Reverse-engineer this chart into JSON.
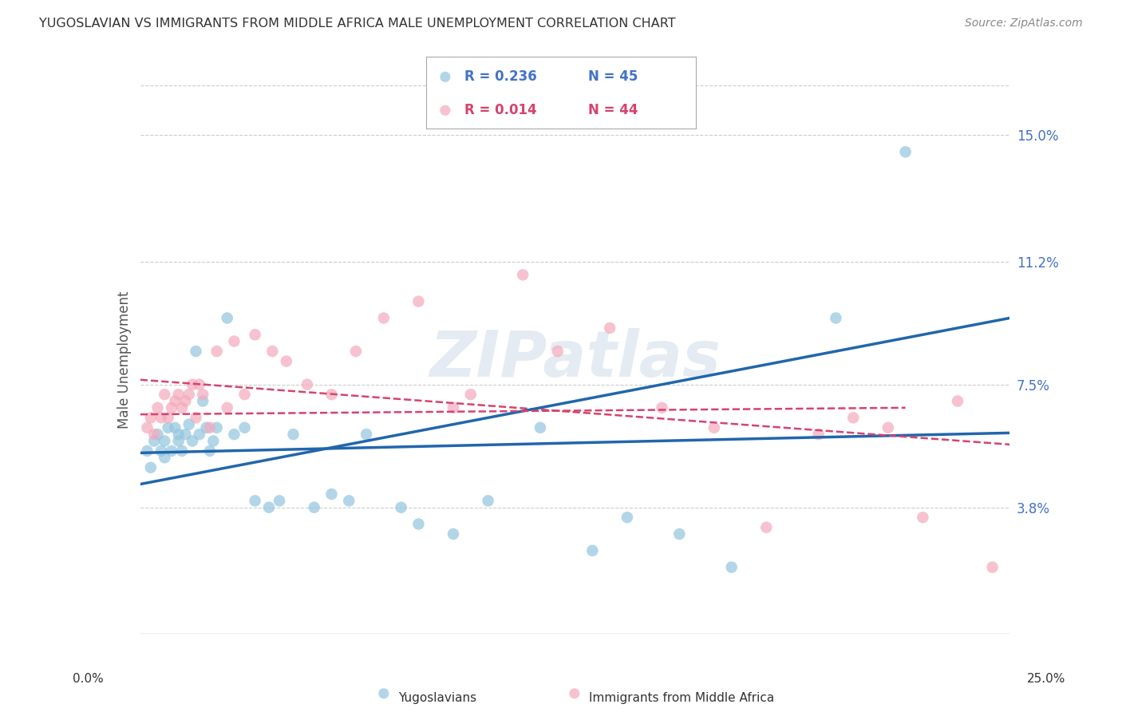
{
  "title": "YUGOSLAVIAN VS IMMIGRANTS FROM MIDDLE AFRICA MALE UNEMPLOYMENT CORRELATION CHART",
  "source": "Source: ZipAtlas.com",
  "ylabel": "Male Unemployment",
  "ytick_labels": [
    "15.0%",
    "11.2%",
    "7.5%",
    "3.8%"
  ],
  "ytick_values": [
    0.15,
    0.112,
    0.075,
    0.038
  ],
  "xtick_left_label": "0.0%",
  "xtick_right_label": "25.0%",
  "xmin": 0.0,
  "xmax": 0.25,
  "ymin": 0.0,
  "ymax": 0.165,
  "watermark": "ZIPatlas",
  "legend_series1_label": "Yugoslavians",
  "legend_series1_R": "R = 0.236",
  "legend_series1_N": "N = 45",
  "legend_series2_label": "Immigrants from Middle Africa",
  "legend_series2_R": "R = 0.014",
  "legend_series2_N": "N = 44",
  "series1_color": "#92c5de",
  "series2_color": "#f4a9bb",
  "series1_line_color": "#2166ac",
  "series2_line_color": "#d6436e",
  "background_color": "#ffffff",
  "grid_color": "#cccccc",
  "blue_x": [
    0.002,
    0.003,
    0.004,
    0.005,
    0.006,
    0.007,
    0.007,
    0.008,
    0.009,
    0.01,
    0.011,
    0.011,
    0.012,
    0.013,
    0.014,
    0.015,
    0.016,
    0.017,
    0.018,
    0.019,
    0.02,
    0.021,
    0.022,
    0.025,
    0.027,
    0.03,
    0.033,
    0.037,
    0.04,
    0.044,
    0.05,
    0.055,
    0.06,
    0.065,
    0.075,
    0.08,
    0.09,
    0.1,
    0.115,
    0.13,
    0.14,
    0.155,
    0.17,
    0.2,
    0.22
  ],
  "blue_y": [
    0.055,
    0.05,
    0.058,
    0.06,
    0.055,
    0.053,
    0.058,
    0.062,
    0.055,
    0.062,
    0.058,
    0.06,
    0.055,
    0.06,
    0.063,
    0.058,
    0.085,
    0.06,
    0.07,
    0.062,
    0.055,
    0.058,
    0.062,
    0.095,
    0.06,
    0.062,
    0.04,
    0.038,
    0.04,
    0.06,
    0.038,
    0.042,
    0.04,
    0.06,
    0.038,
    0.033,
    0.03,
    0.04,
    0.062,
    0.025,
    0.035,
    0.03,
    0.02,
    0.095,
    0.145
  ],
  "pink_x": [
    0.002,
    0.003,
    0.004,
    0.005,
    0.006,
    0.007,
    0.008,
    0.009,
    0.01,
    0.011,
    0.012,
    0.013,
    0.014,
    0.015,
    0.016,
    0.017,
    0.018,
    0.02,
    0.022,
    0.025,
    0.027,
    0.03,
    0.033,
    0.038,
    0.042,
    0.048,
    0.055,
    0.062,
    0.07,
    0.08,
    0.09,
    0.095,
    0.11,
    0.12,
    0.135,
    0.15,
    0.165,
    0.18,
    0.195,
    0.205,
    0.215,
    0.225,
    0.235,
    0.245
  ],
  "pink_y": [
    0.062,
    0.065,
    0.06,
    0.068,
    0.065,
    0.072,
    0.065,
    0.068,
    0.07,
    0.072,
    0.068,
    0.07,
    0.072,
    0.075,
    0.065,
    0.075,
    0.072,
    0.062,
    0.085,
    0.068,
    0.088,
    0.072,
    0.09,
    0.085,
    0.082,
    0.075,
    0.072,
    0.085,
    0.095,
    0.1,
    0.068,
    0.072,
    0.108,
    0.085,
    0.092,
    0.068,
    0.062,
    0.032,
    0.06,
    0.065,
    0.062,
    0.035,
    0.07,
    0.02
  ]
}
